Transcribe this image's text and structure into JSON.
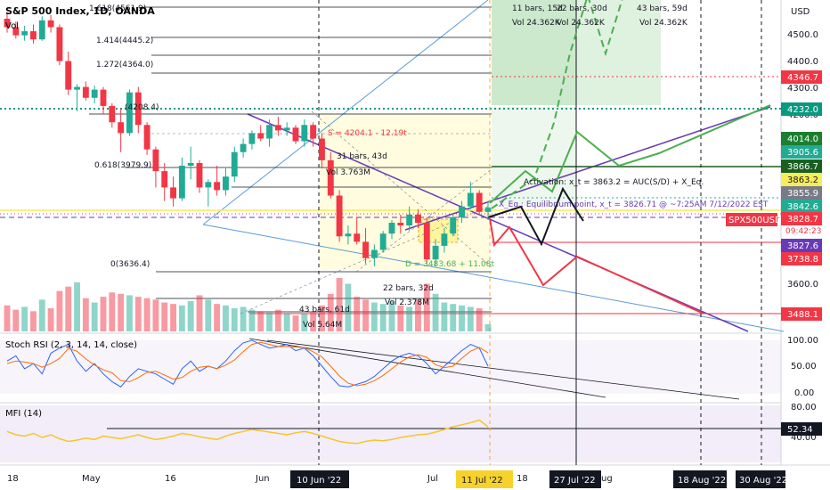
{
  "header": {
    "title": "S&P 500 Index, 1D, OANDA",
    "vol_label": "Vol"
  },
  "indicators": {
    "stoch_label": "Stoch RSI (2, 3, 14, 14, close)",
    "mfi_label": "MFI (14)"
  },
  "axis": {
    "currency": "USD",
    "price_ticks": [
      "4500.0",
      "4400.0",
      "4300.0",
      "4200.0",
      "3600.0"
    ],
    "stoch_ticks": [
      "100.00",
      "50.00",
      "0.00"
    ],
    "mfi_ticks": [
      "80.00",
      "40.00"
    ],
    "x_ticks": [
      "18",
      "May",
      "16",
      "Jun",
      "Jul",
      "18",
      "ug"
    ],
    "x_badges": [
      "10 Jun '22",
      "11 Jul '22",
      "27 Jul '22",
      "18 Aug '22",
      "30 Aug '22"
    ]
  },
  "price_badges": [
    {
      "text": "4346.7",
      "color": "#f23645"
    },
    {
      "text": "4232.0",
      "color": "#089981"
    },
    {
      "text": "4014.0",
      "color": "#1b7f2f"
    },
    {
      "text": "3905.6",
      "color": "#22ab94"
    },
    {
      "text": "3866.7",
      "color": "#1b5e20"
    },
    {
      "text": "3863.2",
      "color": "#f7ec5a"
    },
    {
      "text": "3855.9",
      "color": "#787b86"
    },
    {
      "text": "3842.6",
      "color": "#22ab94"
    },
    {
      "text": "SPX500USD",
      "color": "#f23645"
    },
    {
      "text": "3828.7",
      "color": "#f23645"
    },
    {
      "text": "09:42:23",
      "color": "#f23645"
    },
    {
      "text": "3827.6",
      "color": "#673ab7"
    },
    {
      "text": "3738.8",
      "color": "#f23645"
    },
    {
      "text": "3488.1",
      "color": "#f23645"
    },
    {
      "text": "52.34",
      "color": "#131722"
    }
  ],
  "annotations": {
    "fib": [
      "1.618(4561.9)",
      "1.414(4445.2)",
      "1.272(4364.0)",
      "(4208.4)",
      "0.618(3979.9)",
      "0(3636.4)"
    ],
    "bars_top": [
      "11 bars, 15d",
      "22 bars, 30d",
      "43 bars, 59d"
    ],
    "vol_top": [
      "Vol 24.362K",
      "Vol 24.362K",
      "Vol 24.362K"
    ],
    "bars_mid": "31 bars, 43d",
    "vol_mid": "Vol 3.763M",
    "s_label": "S = 4204.1 - 12.19t",
    "d_label": "D = 3483.68 + 11.08t",
    "activation": "Activation: x_t = 3863.2 = AUC(S/D) + X_Eq.",
    "equilibrium": "X_Eq.: Equilibrium point, x_t = 3826.71 @ ~7:25AM 7/12/2022 EST",
    "bars_low": "22 bars, 32d",
    "vol_low": "Vol 2.378M",
    "bars_low2": "43 bars, 61d",
    "vol_low2": "Vol 5.64M"
  },
  "chart_data": {
    "type": "candlestick",
    "title": "S&P 500 Index, 1D, OANDA",
    "ylabel": "USD",
    "ylim": [
      3400,
      4620
    ],
    "series": [
      {
        "ohlc": [
          [
            4551,
            4575,
            4500,
            4520
          ],
          [
            4520,
            4540,
            4478,
            4490
          ],
          [
            4490,
            4525,
            4470,
            4505
          ],
          [
            4505,
            4530,
            4460,
            4475
          ],
          [
            4475,
            4560,
            4470,
            4545
          ],
          [
            4545,
            4565,
            4500,
            4520
          ],
          [
            4520,
            4530,
            4380,
            4395
          ],
          [
            4395,
            4430,
            4270,
            4290
          ],
          [
            4290,
            4310,
            4210,
            4300
          ],
          [
            4300,
            4320,
            4250,
            4260
          ],
          [
            4260,
            4305,
            4240,
            4290
          ],
          [
            4290,
            4300,
            4200,
            4230
          ],
          [
            4230,
            4240,
            4150,
            4170
          ],
          [
            4170,
            4220,
            4060,
            4130
          ],
          [
            4130,
            4290,
            4120,
            4280
          ],
          [
            4280,
            4300,
            4130,
            4160
          ],
          [
            4160,
            4170,
            4050,
            4070
          ],
          [
            4070,
            4080,
            3930,
            3990
          ],
          [
            3990,
            4020,
            3880,
            3930
          ],
          [
            3930,
            3970,
            3860,
            3890
          ],
          [
            3890,
            4040,
            3880,
            4010
          ],
          [
            4010,
            4080,
            3960,
            4020
          ],
          [
            4020,
            4030,
            3910,
            3930
          ],
          [
            3930,
            3960,
            3860,
            3950
          ],
          [
            3950,
            4010,
            3900,
            3920
          ],
          [
            3920,
            4000,
            3900,
            3970
          ],
          [
            3970,
            4080,
            3950,
            4060
          ],
          [
            4060,
            4110,
            4040,
            4090
          ],
          [
            4090,
            4140,
            4070,
            4130
          ],
          [
            4130,
            4160,
            4100,
            4110
          ],
          [
            4110,
            4180,
            4080,
            4160
          ],
          [
            4160,
            4190,
            4120,
            4140
          ],
          [
            4140,
            4170,
            4120,
            4150
          ],
          [
            4150,
            4160,
            4090,
            4100
          ],
          [
            4100,
            4180,
            4080,
            4160
          ],
          [
            4160,
            4170,
            4080,
            4110
          ],
          [
            4110,
            4130,
            4000,
            4030
          ],
          [
            4030,
            4060,
            3890,
            3900
          ],
          [
            3900,
            3920,
            3730,
            3750
          ],
          [
            3750,
            3790,
            3720,
            3760
          ],
          [
            3760,
            3820,
            3720,
            3730
          ],
          [
            3730,
            3780,
            3650,
            3670
          ],
          [
            3670,
            3720,
            3640,
            3700
          ],
          [
            3700,
            3770,
            3690,
            3760
          ],
          [
            3760,
            3810,
            3740,
            3800
          ],
          [
            3800,
            3830,
            3760,
            3790
          ],
          [
            3790,
            3860,
            3770,
            3830
          ],
          [
            3830,
            3850,
            3780,
            3800
          ],
          [
            3800,
            3820,
            3650,
            3665
          ],
          [
            3665,
            3740,
            3640,
            3715
          ],
          [
            3715,
            3780,
            3690,
            3760
          ],
          [
            3760,
            3830,
            3750,
            3820
          ],
          [
            3820,
            3880,
            3800,
            3860
          ],
          [
            3860,
            3950,
            3850,
            3910
          ],
          [
            3910,
            3920,
            3830,
            3840
          ],
          [
            3840,
            3880,
            3810,
            3855
          ]
        ]
      }
    ],
    "volume": [
      18,
      15,
      17,
      14,
      22,
      16,
      28,
      31,
      34,
      23,
      20,
      24,
      27,
      26,
      25,
      24,
      23,
      22,
      20,
      19,
      18,
      21,
      25,
      22,
      19,
      18,
      16,
      17,
      15,
      14,
      13,
      15,
      12,
      11,
      12,
      14,
      18,
      26,
      37,
      33,
      24,
      22,
      20,
      19,
      21,
      18,
      17,
      22,
      33,
      26,
      20,
      19,
      18,
      17,
      16,
      5
    ],
    "stoch_rsi": {
      "k": [
        60,
        70,
        45,
        55,
        35,
        75,
        85,
        92,
        60,
        40,
        55,
        35,
        20,
        10,
        30,
        45,
        40,
        35,
        25,
        15,
        45,
        60,
        40,
        50,
        45,
        60,
        80,
        95,
        100,
        92,
        85,
        88,
        92,
        80,
        85,
        70,
        50,
        30,
        12,
        10,
        15,
        20,
        30,
        45,
        60,
        70,
        75,
        70,
        55,
        35,
        50,
        65,
        80,
        92,
        85,
        50
      ],
      "d": [
        55,
        60,
        58,
        55,
        48,
        55,
        65,
        84,
        79,
        64,
        52,
        43,
        37,
        22,
        20,
        28,
        38,
        40,
        33,
        25,
        28,
        40,
        48,
        50,
        45,
        52,
        62,
        78,
        92,
        96,
        92,
        88,
        88,
        87,
        86,
        78,
        68,
        50,
        31,
        17,
        12,
        15,
        22,
        32,
        45,
        58,
        68,
        72,
        67,
        53,
        47,
        50,
        65,
        79,
        86,
        76
      ]
    },
    "mfi": [
      45,
      40,
      38,
      42,
      36,
      40,
      34,
      30,
      32,
      35,
      33,
      38,
      36,
      34,
      37,
      40,
      36,
      33,
      35,
      38,
      42,
      40,
      37,
      35,
      33,
      38,
      42,
      45,
      48,
      46,
      44,
      42,
      40,
      43,
      45,
      42,
      38,
      34,
      30,
      28,
      27,
      30,
      32,
      31,
      33,
      36,
      38,
      40,
      41,
      44,
      48,
      52,
      55,
      58,
      62,
      52
    ]
  }
}
